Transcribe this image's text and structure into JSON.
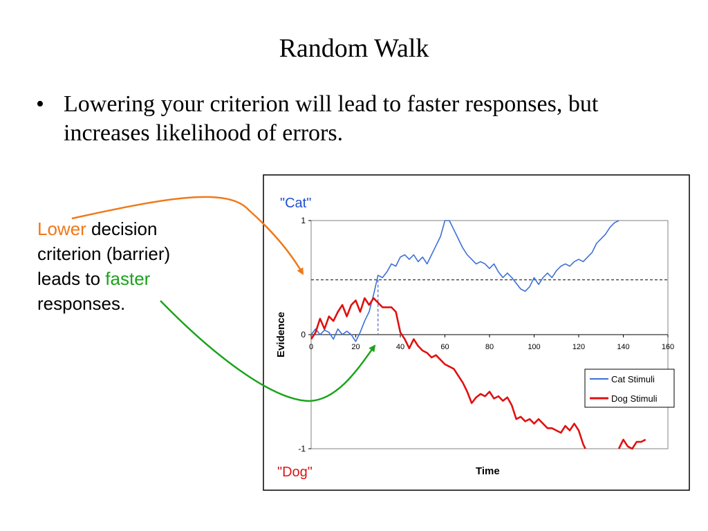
{
  "slide": {
    "title": "Random Walk",
    "bullet": "Lowering your criterion will lead to faster responses, but increases likelihood of errors.",
    "bullet_marker": "•"
  },
  "annotation": {
    "lower": "Lower",
    "part2": " decision criterion (barrier) leads to ",
    "faster": "faster",
    "part4": " responses.",
    "lower_color": "#f07818",
    "faster_color": "#1aa31a"
  },
  "chart_data": {
    "type": "line",
    "ylabel": "Evidence",
    "xlabel": "Time",
    "xlim": [
      0,
      160
    ],
    "ylim": [
      -1,
      1
    ],
    "xticks": [
      "0",
      "20",
      "40",
      "60",
      "80",
      "100",
      "120",
      "140",
      "160"
    ],
    "yticks": [
      "1",
      "0",
      "-1"
    ],
    "top_label": "\"Cat\"",
    "bottom_label": "\"Dog\"",
    "top_label_color": "#1f4fd1",
    "bottom_label_color": "#e01010",
    "criterion": 0.48,
    "response_time": 30,
    "grid": true,
    "legend_position": "lower-right",
    "series": [
      {
        "name": "Cat Stimuli",
        "color": "#3a6fd8",
        "points": [
          [
            0,
            0
          ],
          [
            2,
            0.05
          ],
          [
            4,
            0.0
          ],
          [
            6,
            0.04
          ],
          [
            8,
            0.02
          ],
          [
            10,
            -0.04
          ],
          [
            12,
            0.05
          ],
          [
            14,
            0.0
          ],
          [
            16,
            0.03
          ],
          [
            18,
            0.0
          ],
          [
            20,
            -0.06
          ],
          [
            22,
            0.02
          ],
          [
            24,
            0.12
          ],
          [
            26,
            0.2
          ],
          [
            28,
            0.35
          ],
          [
            30,
            0.52
          ],
          [
            32,
            0.5
          ],
          [
            34,
            0.55
          ],
          [
            36,
            0.62
          ],
          [
            38,
            0.6
          ],
          [
            40,
            0.68
          ],
          [
            42,
            0.7
          ],
          [
            44,
            0.66
          ],
          [
            46,
            0.7
          ],
          [
            48,
            0.64
          ],
          [
            50,
            0.68
          ],
          [
            52,
            0.62
          ],
          [
            54,
            0.7
          ],
          [
            56,
            0.78
          ],
          [
            58,
            0.86
          ],
          [
            60,
            1.0
          ],
          [
            62,
            1.0
          ],
          [
            64,
            0.92
          ],
          [
            66,
            0.84
          ],
          [
            68,
            0.76
          ],
          [
            70,
            0.7
          ],
          [
            72,
            0.66
          ],
          [
            74,
            0.62
          ],
          [
            76,
            0.64
          ],
          [
            78,
            0.62
          ],
          [
            80,
            0.58
          ],
          [
            82,
            0.62
          ],
          [
            84,
            0.55
          ],
          [
            86,
            0.5
          ],
          [
            88,
            0.54
          ],
          [
            90,
            0.5
          ],
          [
            92,
            0.45
          ],
          [
            94,
            0.4
          ],
          [
            96,
            0.38
          ],
          [
            98,
            0.42
          ],
          [
            100,
            0.5
          ],
          [
            102,
            0.44
          ],
          [
            104,
            0.5
          ],
          [
            106,
            0.54
          ],
          [
            108,
            0.5
          ],
          [
            110,
            0.56
          ],
          [
            112,
            0.6
          ],
          [
            114,
            0.62
          ],
          [
            116,
            0.6
          ],
          [
            118,
            0.64
          ],
          [
            120,
            0.66
          ],
          [
            122,
            0.64
          ],
          [
            124,
            0.68
          ],
          [
            126,
            0.72
          ],
          [
            128,
            0.8
          ],
          [
            130,
            0.84
          ],
          [
            132,
            0.88
          ],
          [
            134,
            0.94
          ],
          [
            136,
            0.98
          ],
          [
            138,
            1.0
          ]
        ]
      },
      {
        "name": "Dog Stimuli",
        "color": "#e01010",
        "points": [
          [
            0,
            -0.04
          ],
          [
            2,
            0.02
          ],
          [
            4,
            0.14
          ],
          [
            6,
            0.05
          ],
          [
            8,
            0.16
          ],
          [
            10,
            0.12
          ],
          [
            12,
            0.2
          ],
          [
            14,
            0.26
          ],
          [
            16,
            0.16
          ],
          [
            18,
            0.26
          ],
          [
            20,
            0.3
          ],
          [
            22,
            0.2
          ],
          [
            24,
            0.32
          ],
          [
            26,
            0.26
          ],
          [
            28,
            0.32
          ],
          [
            30,
            0.28
          ],
          [
            32,
            0.24
          ],
          [
            34,
            0.24
          ],
          [
            36,
            0.24
          ],
          [
            38,
            0.2
          ],
          [
            40,
            0.02
          ],
          [
            42,
            -0.04
          ],
          [
            44,
            -0.12
          ],
          [
            46,
            -0.04
          ],
          [
            48,
            -0.1
          ],
          [
            50,
            -0.14
          ],
          [
            52,
            -0.16
          ],
          [
            54,
            -0.2
          ],
          [
            56,
            -0.18
          ],
          [
            58,
            -0.22
          ],
          [
            60,
            -0.26
          ],
          [
            62,
            -0.28
          ],
          [
            64,
            -0.3
          ],
          [
            66,
            -0.36
          ],
          [
            68,
            -0.42
          ],
          [
            70,
            -0.5
          ],
          [
            72,
            -0.6
          ],
          [
            74,
            -0.55
          ],
          [
            76,
            -0.52
          ],
          [
            78,
            -0.54
          ],
          [
            80,
            -0.5
          ],
          [
            82,
            -0.56
          ],
          [
            84,
            -0.54
          ],
          [
            86,
            -0.58
          ],
          [
            88,
            -0.55
          ],
          [
            90,
            -0.62
          ],
          [
            92,
            -0.74
          ],
          [
            94,
            -0.72
          ],
          [
            96,
            -0.76
          ],
          [
            98,
            -0.74
          ],
          [
            100,
            -0.78
          ],
          [
            102,
            -0.74
          ],
          [
            104,
            -0.78
          ],
          [
            106,
            -0.82
          ],
          [
            108,
            -0.82
          ],
          [
            110,
            -0.84
          ],
          [
            112,
            -0.86
          ],
          [
            114,
            -0.8
          ],
          [
            116,
            -0.84
          ],
          [
            118,
            -0.78
          ],
          [
            120,
            -0.84
          ],
          [
            122,
            -0.96
          ],
          [
            123,
            -1.0
          ]
        ],
        "points_after": [
          [
            138,
            -1.0
          ],
          [
            140,
            -0.92
          ],
          [
            142,
            -0.98
          ],
          [
            144,
            -1.0
          ],
          [
            146,
            -0.94
          ],
          [
            148,
            -0.94
          ],
          [
            150,
            -0.92
          ]
        ]
      }
    ]
  }
}
